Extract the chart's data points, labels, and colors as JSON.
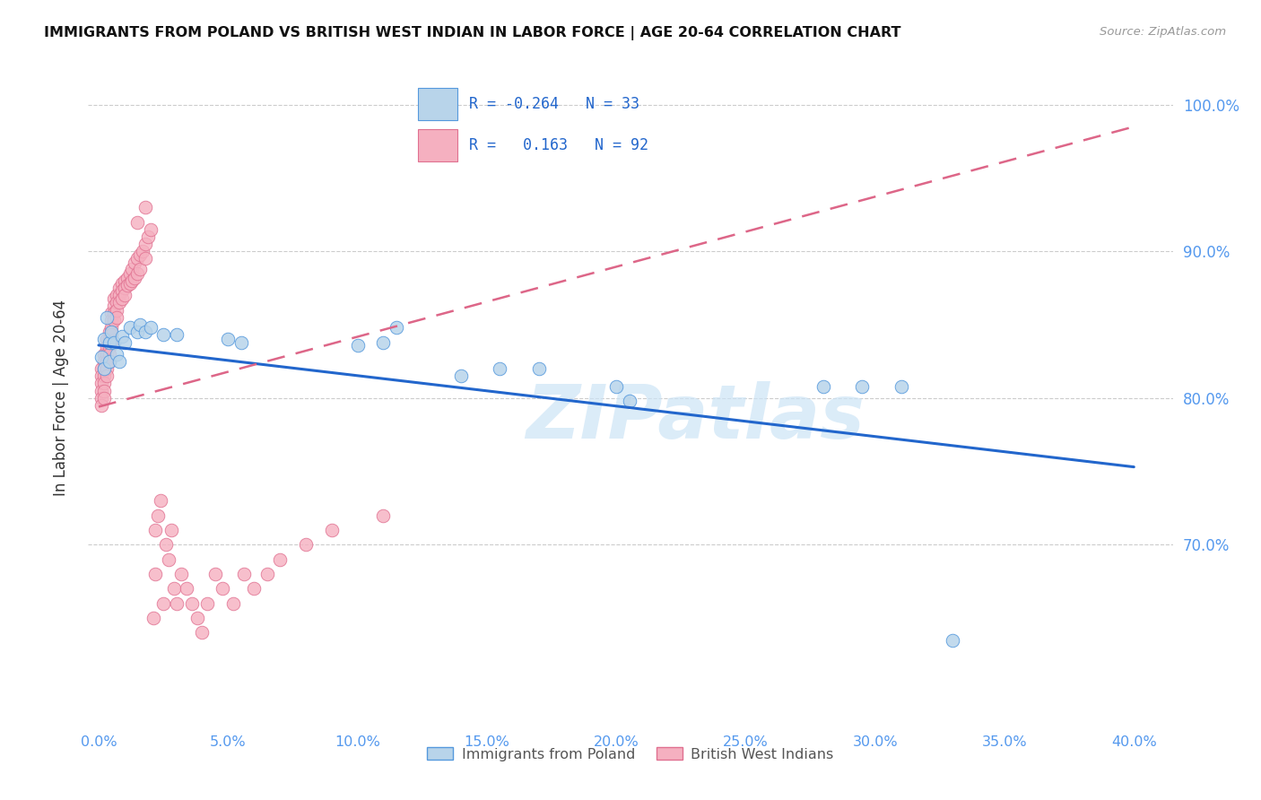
{
  "title": "IMMIGRANTS FROM POLAND VS BRITISH WEST INDIAN IN LABOR FORCE | AGE 20-64 CORRELATION CHART",
  "source": "Source: ZipAtlas.com",
  "xlim": [
    -0.004,
    0.415
  ],
  "ylim": [
    0.575,
    1.025
  ],
  "xlabel_ticks": [
    0.0,
    0.05,
    0.1,
    0.15,
    0.2,
    0.25,
    0.3,
    0.35,
    0.4
  ],
  "ylabel_ticks": [
    0.7,
    0.8,
    0.9,
    1.0
  ],
  "ylabel": "In Labor Force | Age 20-64",
  "poland_R": -0.264,
  "poland_N": 33,
  "bwi_R": 0.163,
  "bwi_N": 92,
  "poland_fill": "#b8d4ea",
  "bwi_fill": "#f5b0c0",
  "poland_edge": "#5599dd",
  "bwi_edge": "#e07090",
  "poland_line": "#2266cc",
  "bwi_line": "#dd6688",
  "watermark_text": "ZIPatlas",
  "watermark_color": "#cce4f6",
  "legend_label_poland": "Immigrants from Poland",
  "legend_label_bwi": "British West Indians",
  "poland_trend_x0": 0.0,
  "poland_trend_y0": 0.836,
  "poland_trend_x1": 0.4,
  "poland_trend_y1": 0.753,
  "bwi_trend_x0": 0.0,
  "bwi_trend_y0": 0.794,
  "bwi_trend_x1": 0.4,
  "bwi_trend_y1": 0.985,
  "poland_x": [
    0.001,
    0.002,
    0.002,
    0.003,
    0.004,
    0.004,
    0.005,
    0.006,
    0.007,
    0.008,
    0.009,
    0.01,
    0.012,
    0.015,
    0.016,
    0.018,
    0.02,
    0.025,
    0.03,
    0.05,
    0.055,
    0.1,
    0.11,
    0.115,
    0.14,
    0.155,
    0.2,
    0.205,
    0.28,
    0.295,
    0.31,
    0.33,
    0.17
  ],
  "poland_y": [
    0.828,
    0.84,
    0.82,
    0.855,
    0.838,
    0.825,
    0.845,
    0.838,
    0.83,
    0.825,
    0.842,
    0.838,
    0.848,
    0.845,
    0.85,
    0.845,
    0.848,
    0.843,
    0.843,
    0.84,
    0.838,
    0.836,
    0.838,
    0.848,
    0.815,
    0.82,
    0.808,
    0.798,
    0.808,
    0.808,
    0.808,
    0.635,
    0.82
  ],
  "bwi_x": [
    0.001,
    0.001,
    0.001,
    0.001,
    0.001,
    0.001,
    0.002,
    0.002,
    0.002,
    0.002,
    0.002,
    0.002,
    0.002,
    0.003,
    0.003,
    0.003,
    0.003,
    0.003,
    0.003,
    0.004,
    0.004,
    0.004,
    0.004,
    0.004,
    0.005,
    0.005,
    0.005,
    0.005,
    0.005,
    0.006,
    0.006,
    0.006,
    0.006,
    0.007,
    0.007,
    0.007,
    0.007,
    0.008,
    0.008,
    0.008,
    0.009,
    0.009,
    0.009,
    0.01,
    0.01,
    0.01,
    0.011,
    0.011,
    0.012,
    0.012,
    0.013,
    0.013,
    0.014,
    0.014,
    0.015,
    0.015,
    0.016,
    0.016,
    0.017,
    0.018,
    0.018,
    0.019,
    0.02,
    0.021,
    0.022,
    0.022,
    0.023,
    0.024,
    0.025,
    0.026,
    0.027,
    0.028,
    0.029,
    0.03,
    0.032,
    0.034,
    0.036,
    0.038,
    0.04,
    0.042,
    0.045,
    0.048,
    0.052,
    0.056,
    0.06,
    0.065,
    0.07,
    0.08,
    0.09,
    0.11,
    0.015,
    0.018
  ],
  "bwi_y": [
    0.82,
    0.815,
    0.81,
    0.805,
    0.8,
    0.795,
    0.83,
    0.825,
    0.82,
    0.815,
    0.81,
    0.805,
    0.8,
    0.84,
    0.835,
    0.83,
    0.825,
    0.82,
    0.815,
    0.845,
    0.84,
    0.835,
    0.83,
    0.825,
    0.858,
    0.853,
    0.848,
    0.843,
    0.838,
    0.868,
    0.863,
    0.858,
    0.853,
    0.87,
    0.865,
    0.86,
    0.855,
    0.875,
    0.87,
    0.865,
    0.878,
    0.873,
    0.868,
    0.88,
    0.875,
    0.87,
    0.882,
    0.877,
    0.885,
    0.878,
    0.888,
    0.88,
    0.892,
    0.882,
    0.895,
    0.885,
    0.898,
    0.888,
    0.9,
    0.905,
    0.895,
    0.91,
    0.915,
    0.65,
    0.71,
    0.68,
    0.72,
    0.73,
    0.66,
    0.7,
    0.69,
    0.71,
    0.67,
    0.66,
    0.68,
    0.67,
    0.66,
    0.65,
    0.64,
    0.66,
    0.68,
    0.67,
    0.66,
    0.68,
    0.67,
    0.68,
    0.69,
    0.7,
    0.71,
    0.72,
    0.92,
    0.93
  ]
}
